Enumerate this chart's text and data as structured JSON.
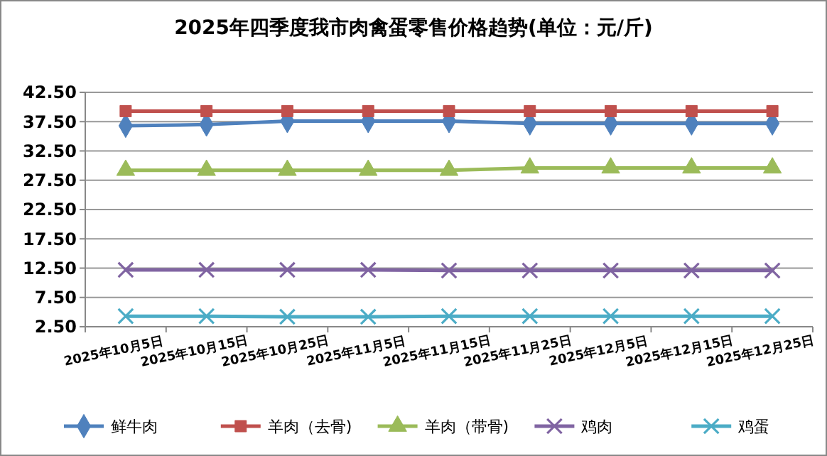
{
  "chart_data": {
    "type": "line",
    "title": "2025年四季度我市肉禽蛋零售价格趋势(单位：元/斤)",
    "categories": [
      "2025年10月5日",
      "2025年10月15日",
      "2025年10月25日",
      "2025年11月5日",
      "2025年11月15日",
      "2025年11月25日",
      "2025年12月5日",
      "2025年12月15日",
      "2025年12月25日"
    ],
    "series": [
      {
        "name": "鲜牛肉",
        "color": "#4f81bd",
        "marker": "diamond",
        "values": [
          36.8,
          37.0,
          37.6,
          37.6,
          37.6,
          37.2,
          37.2,
          37.2,
          37.2
        ]
      },
      {
        "name": "羊肉（去骨)",
        "color": "#c0504d",
        "marker": "square",
        "values": [
          39.3,
          39.3,
          39.3,
          39.3,
          39.3,
          39.3,
          39.3,
          39.3,
          39.3
        ]
      },
      {
        "name": "羊肉（带骨)",
        "color": "#9bbb59",
        "marker": "triangle",
        "values": [
          29.2,
          29.2,
          29.2,
          29.2,
          29.2,
          29.6,
          29.6,
          29.6,
          29.6
        ]
      },
      {
        "name": "鸡肉",
        "color": "#8064a2",
        "marker": "cross",
        "values": [
          12.2,
          12.2,
          12.2,
          12.2,
          12.1,
          12.1,
          12.1,
          12.1,
          12.1
        ]
      },
      {
        "name": "鸡蛋",
        "color": "#4bacc6",
        "marker": "cross",
        "values": [
          4.3,
          4.3,
          4.2,
          4.2,
          4.3,
          4.3,
          4.3,
          4.3,
          4.3
        ]
      }
    ],
    "ylim": [
      2.5,
      42.5
    ],
    "yticks": [
      {
        "value": 2.5,
        "label": "2.50"
      },
      {
        "value": 7.5,
        "label": "7.50"
      },
      {
        "value": 12.5,
        "label": "12.50"
      },
      {
        "value": 17.5,
        "label": "17.50"
      },
      {
        "value": 22.5,
        "label": "22.50"
      },
      {
        "value": 27.5,
        "label": "27.50"
      },
      {
        "value": 32.5,
        "label": "32.50"
      },
      {
        "value": 37.5,
        "label": "37.50"
      },
      {
        "value": 42.5,
        "label": "42.50"
      }
    ],
    "grid": "y",
    "legend": "bottom"
  }
}
